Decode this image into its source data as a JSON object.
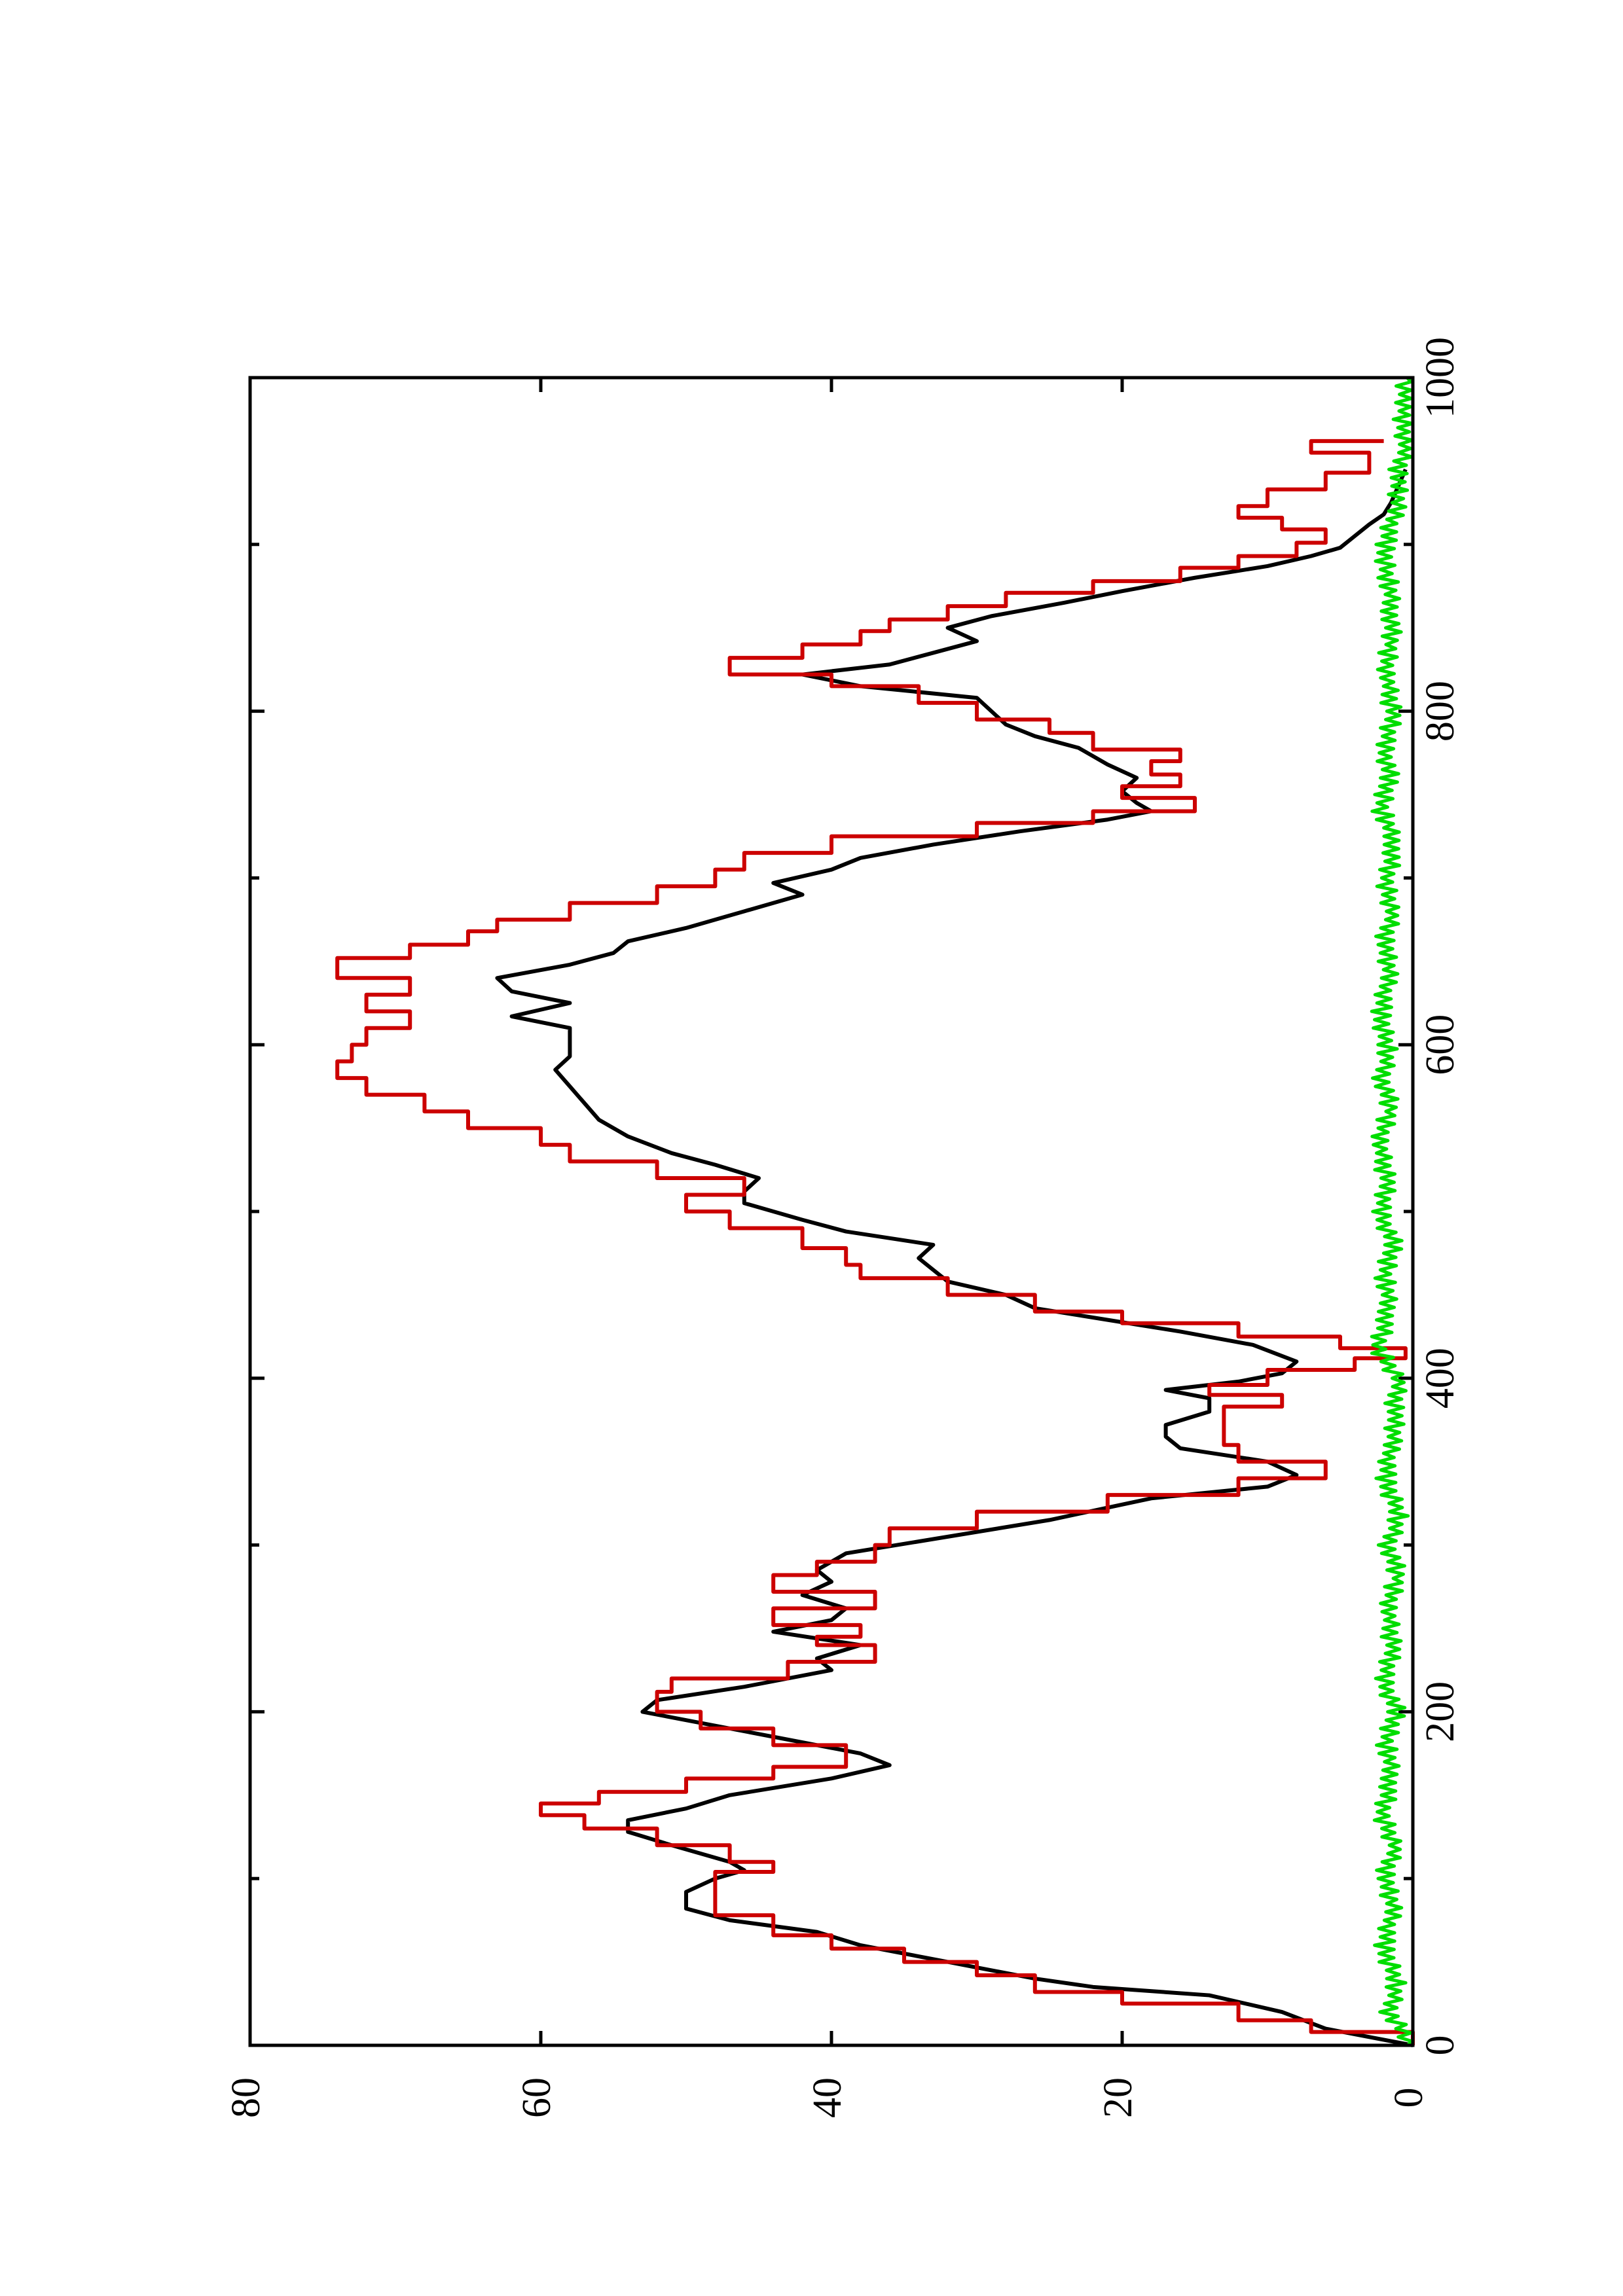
{
  "chart_data": {
    "type": "line",
    "orientation": "rotated 90 degrees counter-clockwise",
    "title": "",
    "xlabel": "",
    "ylabel": "",
    "xlim": [
      0,
      1000
    ],
    "ylim": [
      0,
      80
    ],
    "x_ticks": [
      0,
      200,
      400,
      600,
      800,
      1000
    ],
    "y_ticks": [
      0,
      20,
      40,
      60,
      80
    ],
    "x_tick_labels": [
      "0",
      "200",
      "400",
      "600",
      "800",
      "1000"
    ],
    "y_tick_labels": [
      "0",
      "20",
      "40",
      "60",
      "80"
    ],
    "x_minor_ticks": [
      100,
      300,
      500,
      700,
      900
    ],
    "y_minor_ticks": [],
    "grid": false,
    "legend": "none",
    "series": [
      {
        "color": "#000000",
        "style": "smooth",
        "points": [
          [
            0,
            0
          ],
          [
            10,
            6
          ],
          [
            20,
            9
          ],
          [
            30,
            14
          ],
          [
            35,
            22
          ],
          [
            40,
            26
          ],
          [
            50,
            32
          ],
          [
            60,
            38
          ],
          [
            68,
            41
          ],
          [
            75,
            47
          ],
          [
            82,
            50
          ],
          [
            92,
            50
          ],
          [
            100,
            48
          ],
          [
            105,
            46
          ],
          [
            110,
            47
          ],
          [
            115,
            49
          ],
          [
            120,
            51
          ],
          [
            128,
            54
          ],
          [
            135,
            54
          ],
          [
            142,
            50
          ],
          [
            150,
            47
          ],
          [
            160,
            40
          ],
          [
            168,
            36
          ],
          [
            175,
            38
          ],
          [
            185,
            44
          ],
          [
            195,
            50
          ],
          [
            200,
            53
          ],
          [
            207,
            52
          ],
          [
            215,
            46
          ],
          [
            225,
            40
          ],
          [
            232,
            41
          ],
          [
            240,
            38
          ],
          [
            248,
            44
          ],
          [
            255,
            40
          ],
          [
            262,
            39
          ],
          [
            270,
            42
          ],
          [
            278,
            40
          ],
          [
            285,
            41
          ],
          [
            295,
            39
          ],
          [
            305,
            32
          ],
          [
            315,
            25
          ],
          [
            328,
            18
          ],
          [
            335,
            10
          ],
          [
            342,
            8
          ],
          [
            350,
            10
          ],
          [
            358,
            16
          ],
          [
            365,
            17
          ],
          [
            372,
            17
          ],
          [
            380,
            14
          ],
          [
            388,
            14
          ],
          [
            393,
            17
          ],
          [
            398,
            12
          ],
          [
            403,
            9
          ],
          [
            410,
            8
          ],
          [
            420,
            11
          ],
          [
            428,
            16
          ],
          [
            435,
            21
          ],
          [
            442,
            26
          ],
          [
            450,
            28
          ],
          [
            458,
            32
          ],
          [
            465,
            33
          ],
          [
            472,
            34
          ],
          [
            480,
            33
          ],
          [
            488,
            39
          ],
          [
            495,
            42
          ],
          [
            505,
            46
          ],
          [
            512,
            46
          ],
          [
            520,
            45
          ],
          [
            528,
            48
          ],
          [
            535,
            51
          ],
          [
            545,
            54
          ],
          [
            555,
            56
          ],
          [
            565,
            57
          ],
          [
            575,
            58
          ],
          [
            585,
            59
          ],
          [
            593,
            58
          ],
          [
            600,
            58
          ],
          [
            610,
            58
          ],
          [
            617,
            62
          ],
          [
            625,
            58
          ],
          [
            632,
            62
          ],
          [
            640,
            63
          ],
          [
            648,
            58
          ],
          [
            655,
            55
          ],
          [
            662,
            54
          ],
          [
            670,
            50
          ],
          [
            680,
            46
          ],
          [
            690,
            42
          ],
          [
            697,
            44
          ],
          [
            705,
            40
          ],
          [
            712,
            38
          ],
          [
            720,
            33
          ],
          [
            728,
            27
          ],
          [
            735,
            21
          ],
          [
            740,
            18
          ],
          [
            745,
            19
          ],
          [
            752,
            20
          ],
          [
            760,
            19
          ],
          [
            768,
            21
          ],
          [
            778,
            23
          ],
          [
            785,
            26
          ],
          [
            792,
            28
          ],
          [
            800,
            29
          ],
          [
            808,
            30
          ],
          [
            815,
            38
          ],
          [
            822,
            42
          ],
          [
            828,
            36
          ],
          [
            835,
            33
          ],
          [
            842,
            30
          ],
          [
            850,
            32
          ],
          [
            857,
            29
          ],
          [
            865,
            24
          ],
          [
            872,
            20
          ],
          [
            880,
            15
          ],
          [
            887,
            10
          ],
          [
            893,
            7
          ],
          [
            898,
            5
          ],
          [
            905,
            4
          ],
          [
            912,
            3
          ],
          [
            918,
            2
          ],
          [
            925,
            1.5
          ],
          [
            935,
            1
          ],
          [
            945,
            0.5
          ]
        ]
      },
      {
        "color": "#cc0000",
        "style": "step",
        "points": [
          [
            0,
            0
          ],
          [
            8,
            7
          ],
          [
            15,
            12
          ],
          [
            25,
            20
          ],
          [
            32,
            26
          ],
          [
            42,
            30
          ],
          [
            50,
            35
          ],
          [
            58,
            40
          ],
          [
            66,
            44
          ],
          [
            78,
            48
          ],
          [
            90,
            48
          ],
          [
            104,
            44
          ],
          [
            110,
            47
          ],
          [
            120,
            52
          ],
          [
            130,
            57
          ],
          [
            138,
            60
          ],
          [
            145,
            56
          ],
          [
            152,
            50
          ],
          [
            160,
            44
          ],
          [
            167,
            39
          ],
          [
            173,
            39
          ],
          [
            180,
            44
          ],
          [
            190,
            49
          ],
          [
            200,
            52
          ],
          [
            212,
            51
          ],
          [
            220,
            43
          ],
          [
            230,
            37
          ],
          [
            240,
            41
          ],
          [
            245,
            38
          ],
          [
            252,
            44
          ],
          [
            262,
            37
          ],
          [
            272,
            44
          ],
          [
            282,
            41
          ],
          [
            290,
            37
          ],
          [
            300,
            36
          ],
          [
            310,
            30
          ],
          [
            320,
            21
          ],
          [
            330,
            12
          ],
          [
            340,
            6
          ],
          [
            350,
            12
          ],
          [
            360,
            13
          ],
          [
            375,
            13
          ],
          [
            383,
            9
          ],
          [
            390,
            14
          ],
          [
            396,
            10
          ],
          [
            405,
            4
          ],
          [
            412,
            0.5
          ],
          [
            418,
            5
          ],
          [
            425,
            12
          ],
          [
            433,
            20
          ],
          [
            440,
            26
          ],
          [
            450,
            32
          ],
          [
            460,
            38
          ],
          [
            468,
            39
          ],
          [
            478,
            42
          ],
          [
            490,
            47
          ],
          [
            500,
            50
          ],
          [
            510,
            46
          ],
          [
            520,
            52
          ],
          [
            530,
            58
          ],
          [
            540,
            60
          ],
          [
            550,
            65
          ],
          [
            560,
            68
          ],
          [
            570,
            72
          ],
          [
            580,
            74
          ],
          [
            590,
            73
          ],
          [
            600,
            72
          ],
          [
            610,
            69
          ],
          [
            620,
            72
          ],
          [
            630,
            69
          ],
          [
            640,
            74
          ],
          [
            652,
            69
          ],
          [
            660,
            65
          ],
          [
            668,
            63
          ],
          [
            675,
            58
          ],
          [
            685,
            52
          ],
          [
            695,
            48
          ],
          [
            705,
            46
          ],
          [
            715,
            40
          ],
          [
            725,
            30
          ],
          [
            733,
            22
          ],
          [
            740,
            15
          ],
          [
            748,
            20
          ],
          [
            755,
            16
          ],
          [
            762,
            18
          ],
          [
            770,
            16
          ],
          [
            777,
            22
          ],
          [
            787,
            25
          ],
          [
            795,
            30
          ],
          [
            805,
            34
          ],
          [
            815,
            40
          ],
          [
            822,
            47
          ],
          [
            832,
            42
          ],
          [
            840,
            38
          ],
          [
            848,
            36
          ],
          [
            855,
            32
          ],
          [
            863,
            28
          ],
          [
            871,
            22
          ],
          [
            878,
            16
          ],
          [
            886,
            12
          ],
          [
            893,
            8
          ],
          [
            901,
            6
          ],
          [
            909,
            9
          ],
          [
            916,
            12
          ],
          [
            923,
            10
          ],
          [
            933,
            6
          ],
          [
            943,
            3
          ],
          [
            955,
            7
          ],
          [
            962,
            2
          ]
        ]
      },
      {
        "color": "#00dd00",
        "style": "noise",
        "points": [
          [
            0,
            0
          ],
          [
            20,
            1.5
          ],
          [
            40,
            1.1
          ],
          [
            60,
            2.0
          ],
          [
            80,
            1.3
          ],
          [
            100,
            1.9
          ],
          [
            120,
            1.2
          ],
          [
            140,
            2.1
          ],
          [
            160,
            1.4
          ],
          [
            180,
            1.8
          ],
          [
            200,
            1.1
          ],
          [
            220,
            2.0
          ],
          [
            240,
            1.3
          ],
          [
            260,
            1.7
          ],
          [
            280,
            1.0
          ],
          [
            300,
            1.6
          ],
          [
            320,
            0.9
          ],
          [
            340,
            1.9
          ],
          [
            360,
            1.4
          ],
          [
            380,
            1.2
          ],
          [
            400,
            1.0
          ],
          [
            420,
            2.4
          ],
          [
            440,
            1.6
          ],
          [
            460,
            1.9
          ],
          [
            480,
            1.3
          ],
          [
            500,
            2.2
          ],
          [
            520,
            1.7
          ],
          [
            540,
            2.3
          ],
          [
            560,
            1.5
          ],
          [
            580,
            2.0
          ],
          [
            600,
            1.7
          ],
          [
            620,
            2.2
          ],
          [
            640,
            1.6
          ],
          [
            660,
            1.9
          ],
          [
            680,
            1.4
          ],
          [
            700,
            1.8
          ],
          [
            720,
            1.2
          ],
          [
            740,
            2.1
          ],
          [
            760,
            1.6
          ],
          [
            780,
            1.9
          ],
          [
            800,
            1.3
          ],
          [
            820,
            1.8
          ],
          [
            840,
            1.5
          ],
          [
            860,
            1.4
          ],
          [
            880,
            1.7
          ],
          [
            900,
            1.9
          ],
          [
            920,
            1.1
          ],
          [
            940,
            1.0
          ],
          [
            960,
            0.5
          ],
          [
            980,
            0.6
          ],
          [
            1000,
            0.4
          ]
        ]
      }
    ]
  }
}
